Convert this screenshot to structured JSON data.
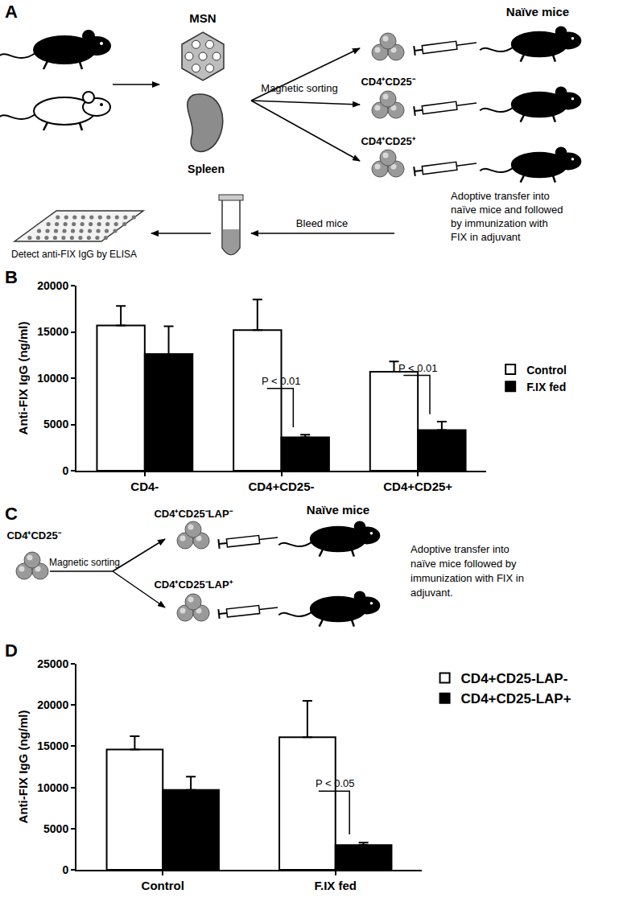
{
  "panel_labels": [
    "A",
    "B",
    "C",
    "D"
  ],
  "diagram_A": {
    "naive_mice": "Naïve mice",
    "msn": "MSN",
    "spleen": "Spleen",
    "sorting": "Magnetic sorting",
    "populations": [
      "CD4⁺CD25⁻",
      "CD4⁺CD25⁺"
    ],
    "transfer": [
      "Adoptive transfer into",
      "naïve mice and followed",
      "by immunization with",
      "FIX in adjuvant"
    ],
    "bleed": "Bleed mice",
    "elisa": "Detect anti-FIX IgG by ELISA"
  },
  "diagram_C": {
    "source": "CD4⁺CD25⁻",
    "sorting": "Magnetic sorting",
    "populations": [
      "CD4⁺CD25⁻LAP⁻",
      "CD4⁺CD25⁻LAP⁺"
    ],
    "naive_mice": "Naïve mice",
    "transfer": [
      "Adoptive transfer into",
      "naïve mice followed by",
      "immunization with FIX in",
      "adjuvant."
    ]
  },
  "chart_data": [
    {
      "type": "bar",
      "y_label": "Anti-FIX IgG (ng/ml)",
      "categories": [
        "CD4-",
        "CD4+CD25-",
        "CD4+CD25+"
      ],
      "series": [
        {
          "name": "Control",
          "color": "#ffffff",
          "values": [
            15700,
            15200,
            10700
          ],
          "errors": [
            2100,
            3300,
            1100
          ]
        },
        {
          "name": "F.IX fed",
          "color": "#000000",
          "values": [
            12600,
            3600,
            4400
          ],
          "errors": [
            3000,
            300,
            900
          ]
        }
      ],
      "ylim": [
        0,
        20000
      ],
      "yticks": [
        0,
        5000,
        10000,
        15000,
        20000
      ],
      "grid": false,
      "legend": "right",
      "annotations": [
        {
          "text": "P < 0.01",
          "category": "CD4+CD25-"
        },
        {
          "text": "P < 0.01",
          "category": "CD4+CD25+"
        }
      ]
    },
    {
      "type": "bar",
      "y_label": "Anti-FIX IgG (ng/ml)",
      "categories": [
        "Control",
        "F.IX fed"
      ],
      "series": [
        {
          "name": "CD4+CD25-LAP-",
          "color": "#ffffff",
          "values": [
            14600,
            16100
          ],
          "errors": [
            1600,
            4400
          ]
        },
        {
          "name": "CD4+CD25-LAP+",
          "color": "#000000",
          "values": [
            9700,
            3000
          ],
          "errors": [
            1600,
            300
          ]
        }
      ],
      "ylim": [
        0,
        25000
      ],
      "yticks": [
        0,
        5000,
        10000,
        15000,
        20000,
        25000
      ],
      "grid": false,
      "legend": "top right",
      "annotations": [
        {
          "text": "P < 0.05",
          "category": "F.IX fed"
        }
      ]
    }
  ]
}
